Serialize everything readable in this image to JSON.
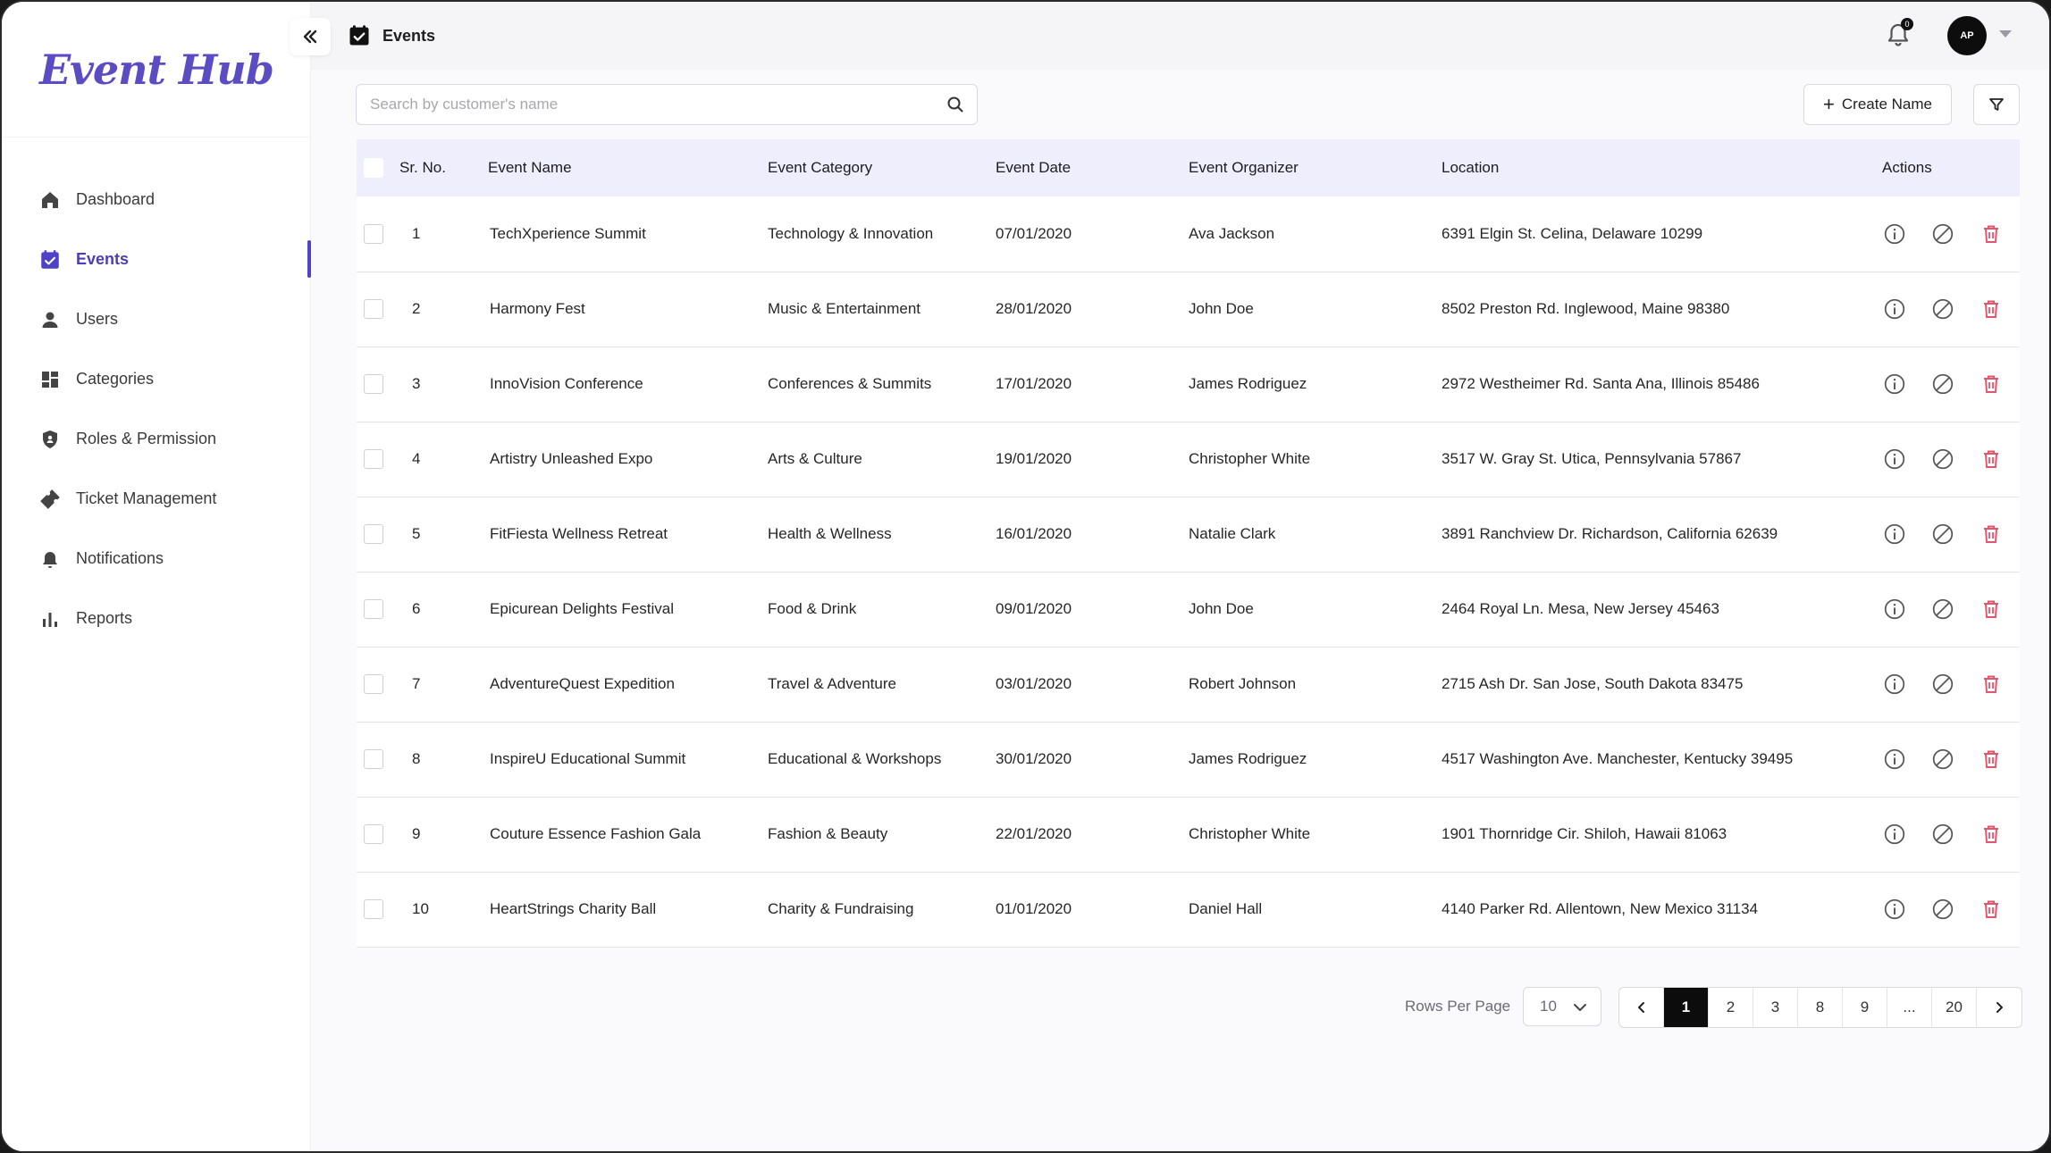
{
  "app": {
    "logo_text": "Event Hub"
  },
  "header": {
    "title": "Events",
    "notification_count": "0",
    "avatar_initials": "AP"
  },
  "sidebar": {
    "items": [
      {
        "label": "Dashboard",
        "icon": "home-icon",
        "active": false
      },
      {
        "label": "Events",
        "icon": "calendar-check-icon",
        "active": true
      },
      {
        "label": "Users",
        "icon": "user-icon",
        "active": false
      },
      {
        "label": "Categories",
        "icon": "grid-icon",
        "active": false
      },
      {
        "label": "Roles & Permission",
        "icon": "shield-icon",
        "active": false
      },
      {
        "label": "Ticket Management",
        "icon": "ticket-icon",
        "active": false
      },
      {
        "label": "Notifications",
        "icon": "bell-icon",
        "active": false
      },
      {
        "label": "Reports",
        "icon": "bar-chart-icon",
        "active": false
      }
    ]
  },
  "toolbar": {
    "search_placeholder": "Search by customer's name",
    "search_value": "",
    "create_label": "Create Name"
  },
  "table": {
    "columns": [
      "Sr. No.",
      "Event Name",
      "Event Category",
      "Event Date",
      "Event Organizer",
      "Location",
      "Actions"
    ],
    "rows": [
      {
        "sr": "1",
        "name": "TechXperience Summit",
        "category": "Technology & Innovation",
        "date": "07/01/2020",
        "organizer": "Ava Jackson",
        "location": "6391 Elgin St. Celina, Delaware 10299"
      },
      {
        "sr": "2",
        "name": "Harmony Fest",
        "category": "Music & Entertainment",
        "date": "28/01/2020",
        "organizer": "John Doe",
        "location": "8502 Preston Rd. Inglewood, Maine 98380"
      },
      {
        "sr": "3",
        "name": "InnoVision Conference",
        "category": "Conferences & Summits",
        "date": "17/01/2020",
        "organizer": "James Rodriguez",
        "location": "2972 Westheimer Rd. Santa Ana, Illinois 85486"
      },
      {
        "sr": "4",
        "name": "Artistry Unleashed Expo",
        "category": "Arts & Culture",
        "date": "19/01/2020",
        "organizer": "Christopher White",
        "location": "3517 W. Gray St. Utica, Pennsylvania 57867"
      },
      {
        "sr": "5",
        "name": "FitFiesta Wellness Retreat",
        "category": "Health & Wellness",
        "date": "16/01/2020",
        "organizer": "Natalie Clark",
        "location": "3891 Ranchview Dr. Richardson, California 62639"
      },
      {
        "sr": "6",
        "name": "Epicurean Delights Festival",
        "category": "Food & Drink",
        "date": "09/01/2020",
        "organizer": "John Doe",
        "location": "2464 Royal Ln. Mesa, New Jersey 45463"
      },
      {
        "sr": "7",
        "name": "AdventureQuest Expedition",
        "category": "Travel & Adventure",
        "date": "03/01/2020",
        "organizer": "Robert Johnson",
        "location": "2715 Ash Dr. San Jose, South Dakota 83475"
      },
      {
        "sr": "8",
        "name": "InspireU Educational Summit",
        "category": "Educational & Workshops",
        "date": "30/01/2020",
        "organizer": "James Rodriguez",
        "location": "4517 Washington Ave. Manchester, Kentucky 39495"
      },
      {
        "sr": "9",
        "name": "Couture Essence Fashion Gala",
        "category": "Fashion & Beauty",
        "date": "22/01/2020",
        "organizer": "Christopher White",
        "location": "1901 Thornridge Cir. Shiloh, Hawaii 81063"
      },
      {
        "sr": "10",
        "name": "HeartStrings Charity Ball",
        "category": "Charity & Fundraising",
        "date": "01/01/2020",
        "organizer": "Daniel Hall",
        "location": "4140 Parker Rd. Allentown, New Mexico 31134"
      }
    ]
  },
  "pagination": {
    "rows_per_page_label": "Rows Per Page",
    "rows_per_page_value": "10",
    "pages": [
      "1",
      "2",
      "3",
      "8",
      "9",
      "...",
      "20"
    ],
    "current_page": "1"
  },
  "colors": {
    "accent": "#4e42c7",
    "delete": "#e0566b",
    "header_bg": "#eeeefc"
  }
}
